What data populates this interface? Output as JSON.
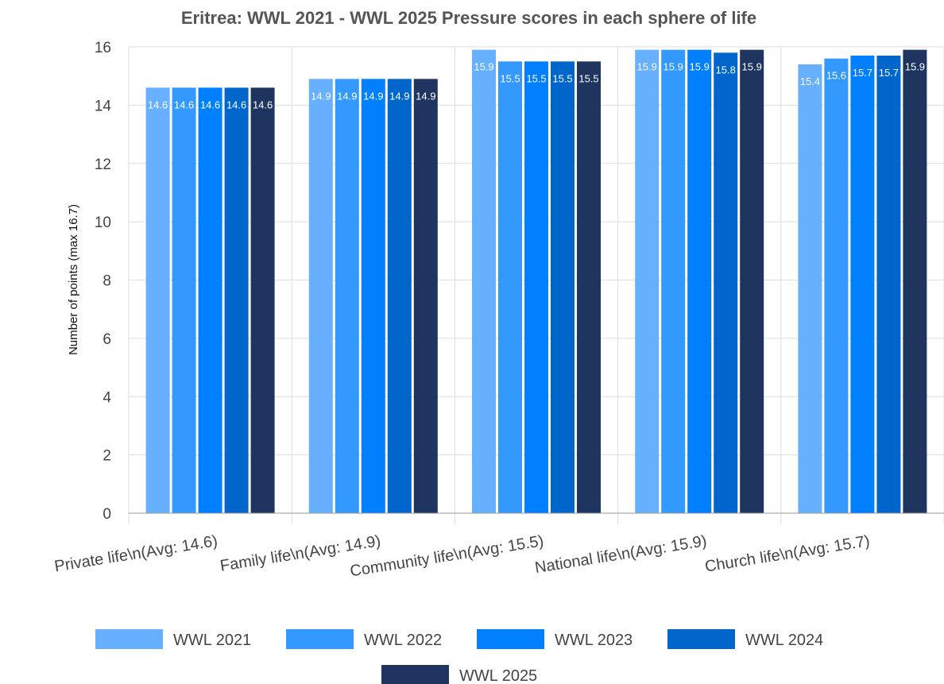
{
  "chart_data": {
    "type": "bar",
    "title": "Eritrea: WWL 2021 - WWL 2025 Pressure scores in each sphere of life",
    "xlabel": "",
    "ylabel": "Number of points (max 16.7)",
    "ylim": [
      0,
      16
    ],
    "yticks": [
      0,
      2,
      4,
      6,
      8,
      10,
      12,
      14,
      16
    ],
    "grid": true,
    "legend_position": "bottom",
    "categories": [
      "Private life\\n(Avg: 14.6)",
      "Family life\\n(Avg: 14.9)",
      "Community life\\n(Avg: 15.5)",
      "National life\\n(Avg: 15.9)",
      "Church life\\n(Avg: 15.7)"
    ],
    "series": [
      {
        "name": "WWL 2021",
        "color": "#66b0ff",
        "values": [
          14.6,
          14.9,
          15.9,
          15.9,
          15.4
        ]
      },
      {
        "name": "WWL 2022",
        "color": "#3399ff",
        "values": [
          14.6,
          14.9,
          15.5,
          15.9,
          15.6
        ]
      },
      {
        "name": "WWL 2023",
        "color": "#0080ff",
        "values": [
          14.6,
          14.9,
          15.5,
          15.9,
          15.7
        ]
      },
      {
        "name": "WWL 2024",
        "color": "#0066cc",
        "values": [
          14.6,
          14.9,
          15.5,
          15.8,
          15.7
        ]
      },
      {
        "name": "WWL 2025",
        "color": "#1f3560",
        "values": [
          14.6,
          14.9,
          15.5,
          15.9,
          15.9
        ]
      }
    ]
  }
}
